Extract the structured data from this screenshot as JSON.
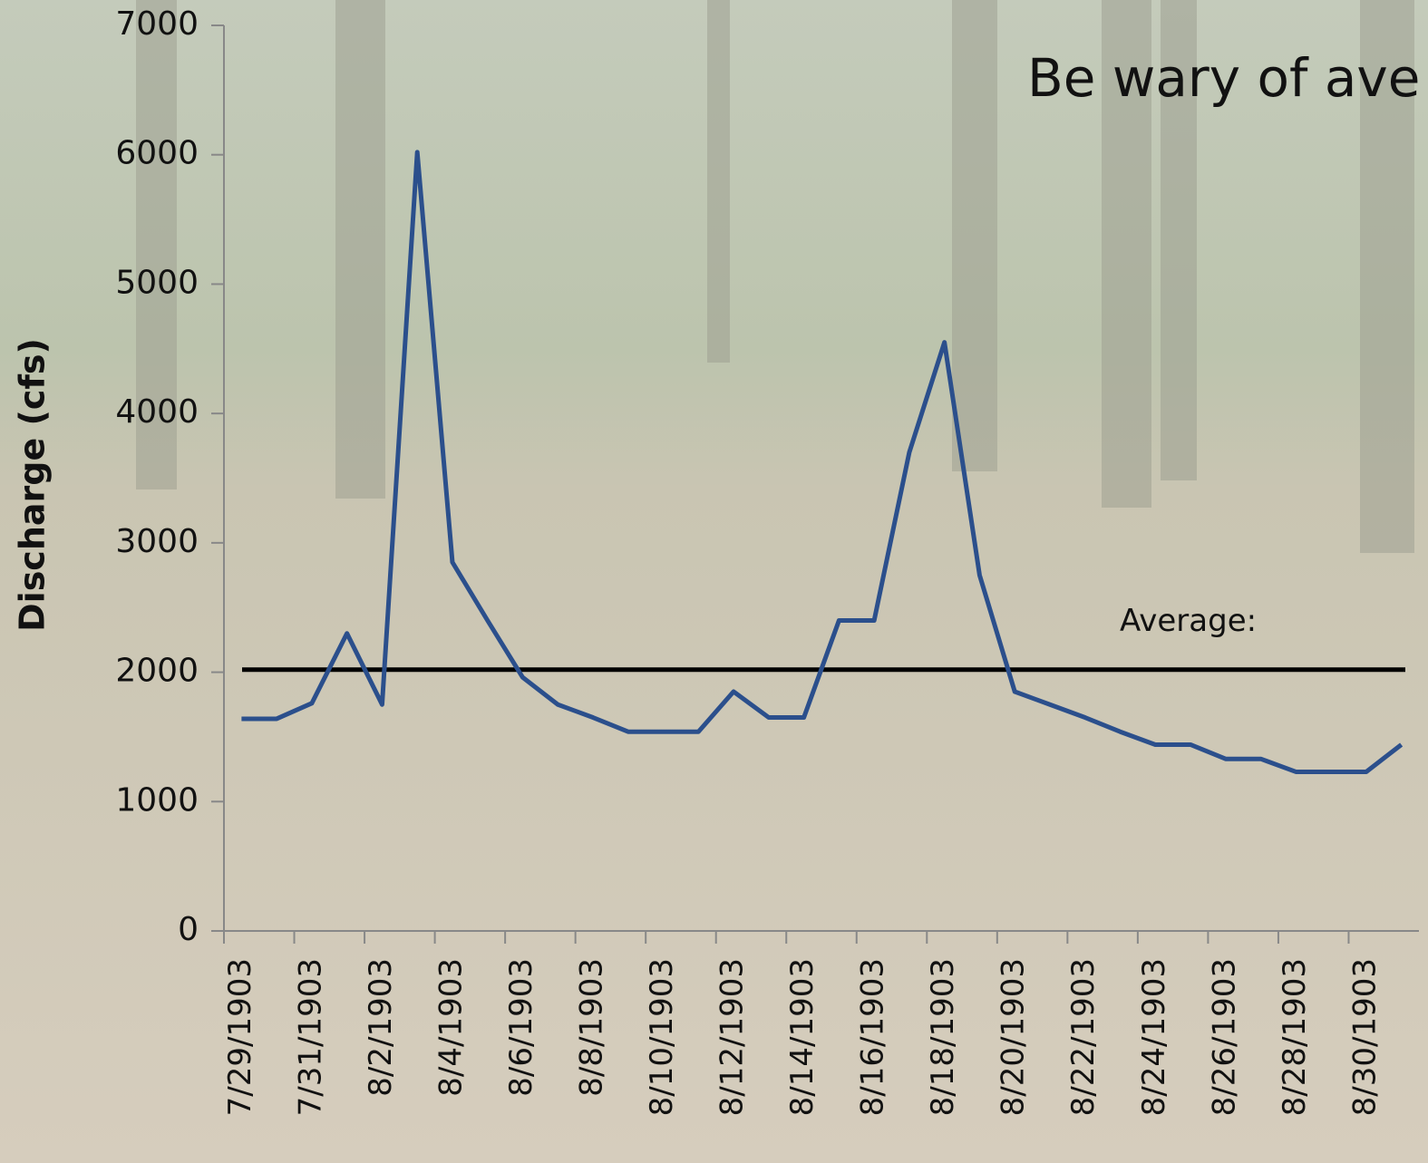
{
  "chart_data": {
    "type": "line",
    "title": "Be wary of ave",
    "y_label": "Discharge (cfs)",
    "categories": [
      "7/29/1903",
      null,
      "7/31/1903",
      null,
      "8/2/1903",
      null,
      "8/4/1903",
      null,
      "8/6/1903",
      null,
      "8/8/1903",
      null,
      "8/10/1903",
      null,
      "8/12/1903",
      null,
      "8/14/1903",
      null,
      "8/16/1903",
      null,
      "8/18/1903",
      null,
      "8/20/1903",
      null,
      "8/22/1903",
      null,
      "8/24/1903",
      null,
      "8/26/1903",
      null,
      "8/28/1903",
      null,
      "8/30/1903",
      null
    ],
    "series": [
      {
        "color": "#2b4f8c",
        "values": [
          1640,
          1640,
          1760,
          2300,
          1750,
          6020,
          2850,
          2400,
          1960,
          1750,
          1650,
          1540,
          1540,
          1540,
          1850,
          1650,
          1650,
          2400,
          2400,
          3700,
          4550,
          2750,
          1850,
          1750,
          1650,
          1540,
          1440,
          1440,
          1330,
          1330,
          1230,
          1230,
          1230,
          1440
        ]
      }
    ],
    "reference_line": {
      "label": "Average:",
      "value": 2020,
      "color": "#000000"
    },
    "ylim": [
      0,
      7000
    ],
    "yticks": [
      0,
      1000,
      2000,
      3000,
      4000,
      5000,
      6000,
      7000
    ],
    "grid": false
  }
}
